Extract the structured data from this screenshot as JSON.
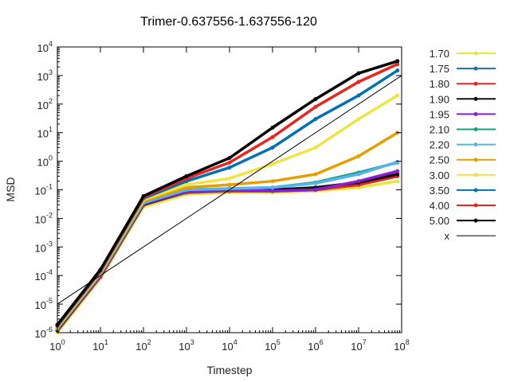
{
  "chart_data": {
    "type": "line",
    "title": "Trimer-0.637556-1.637556-120",
    "xlabel": "Timestep",
    "ylabel": "MSD",
    "xscale": "log",
    "yscale": "log",
    "xlim": [
      1,
      100000000
    ],
    "ylim": [
      1e-06,
      10000
    ],
    "grid": false,
    "legend_position": "right",
    "x_ticks": [
      {
        "base": "10",
        "exp": "0",
        "value": 1
      },
      {
        "base": "10",
        "exp": "1",
        "value": 10
      },
      {
        "base": "10",
        "exp": "2",
        "value": 100
      },
      {
        "base": "10",
        "exp": "3",
        "value": 1000
      },
      {
        "base": "10",
        "exp": "4",
        "value": 10000
      },
      {
        "base": "10",
        "exp": "5",
        "value": 100000
      },
      {
        "base": "10",
        "exp": "6",
        "value": 1000000
      },
      {
        "base": "10",
        "exp": "7",
        "value": 10000000
      },
      {
        "base": "10",
        "exp": "8",
        "value": 100000000
      }
    ],
    "y_ticks": [
      {
        "base": "10",
        "exp": "-6",
        "value": 1e-06
      },
      {
        "base": "10",
        "exp": "-5",
        "value": 1e-05
      },
      {
        "base": "10",
        "exp": "-4",
        "value": 0.0001
      },
      {
        "base": "10",
        "exp": "-3",
        "value": 0.001
      },
      {
        "base": "10",
        "exp": "-2",
        "value": 0.01
      },
      {
        "base": "10",
        "exp": "-1",
        "value": 0.1
      },
      {
        "base": "10",
        "exp": "0",
        "value": 1
      },
      {
        "base": "10",
        "exp": "1",
        "value": 10
      },
      {
        "base": "10",
        "exp": "2",
        "value": 100
      },
      {
        "base": "10",
        "exp": "3",
        "value": 1000
      },
      {
        "base": "10",
        "exp": "4",
        "value": 10000
      }
    ],
    "series": [
      {
        "name": "1.70",
        "color": "#e6e63c",
        "x": [
          1,
          10,
          100,
          1000,
          10000,
          100000,
          1000000,
          10000000,
          80000000
        ],
        "y": [
          1e-06,
          8e-05,
          0.025,
          0.07,
          0.08,
          0.08,
          0.09,
          0.12,
          0.2
        ]
      },
      {
        "name": "1.75",
        "color": "#1a6fa8",
        "x": [
          1,
          10,
          100,
          1000,
          10000,
          100000,
          1000000,
          10000000,
          80000000
        ],
        "y": [
          1.2e-06,
          9e-05,
          0.03,
          0.08,
          0.09,
          0.09,
          0.1,
          0.15,
          0.3
        ]
      },
      {
        "name": "1.80",
        "color": "#e8251e",
        "x": [
          1,
          10,
          100,
          1000,
          10000,
          100000,
          1000000,
          10000000,
          80000000
        ],
        "y": [
          1.2e-06,
          9e-05,
          0.03,
          0.085,
          0.09,
          0.1,
          0.1,
          0.15,
          0.3
        ]
      },
      {
        "name": "1.90",
        "color": "#111111",
        "x": [
          1,
          10,
          100,
          1000,
          10000,
          100000,
          1000000,
          10000000,
          80000000
        ],
        "y": [
          1.2e-06,
          0.0001,
          0.03,
          0.09,
          0.1,
          0.1,
          0.12,
          0.18,
          0.35
        ]
      },
      {
        "name": "1.95",
        "color": "#8a1fd0",
        "x": [
          1,
          10,
          100,
          1000,
          10000,
          100000,
          1000000,
          10000000,
          80000000
        ],
        "y": [
          1.3e-06,
          0.0001,
          0.032,
          0.09,
          0.1,
          0.09,
          0.1,
          0.2,
          0.45
        ]
      },
      {
        "name": "2.10",
        "color": "#17a085",
        "x": [
          1,
          10,
          100,
          1000,
          10000,
          100000,
          1000000,
          10000000,
          80000000
        ],
        "y": [
          1.4e-06,
          0.00011,
          0.035,
          0.1,
          0.11,
          0.12,
          0.18,
          0.4,
          0.9
        ]
      },
      {
        "name": "2.20",
        "color": "#56b4e9",
        "x": [
          1,
          10,
          100,
          1000,
          10000,
          100000,
          1000000,
          10000000,
          80000000
        ],
        "y": [
          1.4e-06,
          0.00011,
          0.035,
          0.1,
          0.11,
          0.12,
          0.17,
          0.35,
          0.95
        ]
      },
      {
        "name": "2.50",
        "color": "#e69f00",
        "x": [
          1,
          10,
          100,
          1000,
          10000,
          100000,
          1000000,
          10000000,
          80000000
        ],
        "y": [
          1.5e-06,
          0.00012,
          0.04,
          0.12,
          0.15,
          0.2,
          0.35,
          1.5,
          10
        ]
      },
      {
        "name": "3.00",
        "color": "#f0e442",
        "x": [
          1,
          10,
          100,
          1000,
          10000,
          100000,
          1000000,
          10000000,
          80000000
        ],
        "y": [
          1.6e-06,
          0.00013,
          0.045,
          0.15,
          0.25,
          0.8,
          3,
          30,
          200
        ]
      },
      {
        "name": "3.50",
        "color": "#0072b2",
        "x": [
          1,
          10,
          100,
          1000,
          10000,
          100000,
          1000000,
          10000000,
          80000000
        ],
        "y": [
          1.7e-06,
          0.00014,
          0.05,
          0.2,
          0.6,
          3,
          30,
          200,
          1500
        ]
      },
      {
        "name": "4.00",
        "color": "#e8251e",
        "x": [
          1,
          10,
          100,
          1000,
          10000,
          100000,
          1000000,
          10000000,
          80000000
        ],
        "y": [
          1.8e-06,
          0.00015,
          0.055,
          0.25,
          0.9,
          7,
          80,
          600,
          2500
        ]
      },
      {
        "name": "5.00",
        "color": "#000000",
        "x": [
          1,
          10,
          100,
          1000,
          10000,
          100000,
          1000000,
          10000000,
          80000000
        ],
        "y": [
          1.9e-06,
          0.00016,
          0.06,
          0.3,
          1.3,
          15,
          150,
          1200,
          3200
        ]
      },
      {
        "name": "x",
        "color": "#000000",
        "thin": true,
        "x": [
          1,
          100000000
        ],
        "y": [
          1e-05,
          1000
        ]
      }
    ]
  }
}
